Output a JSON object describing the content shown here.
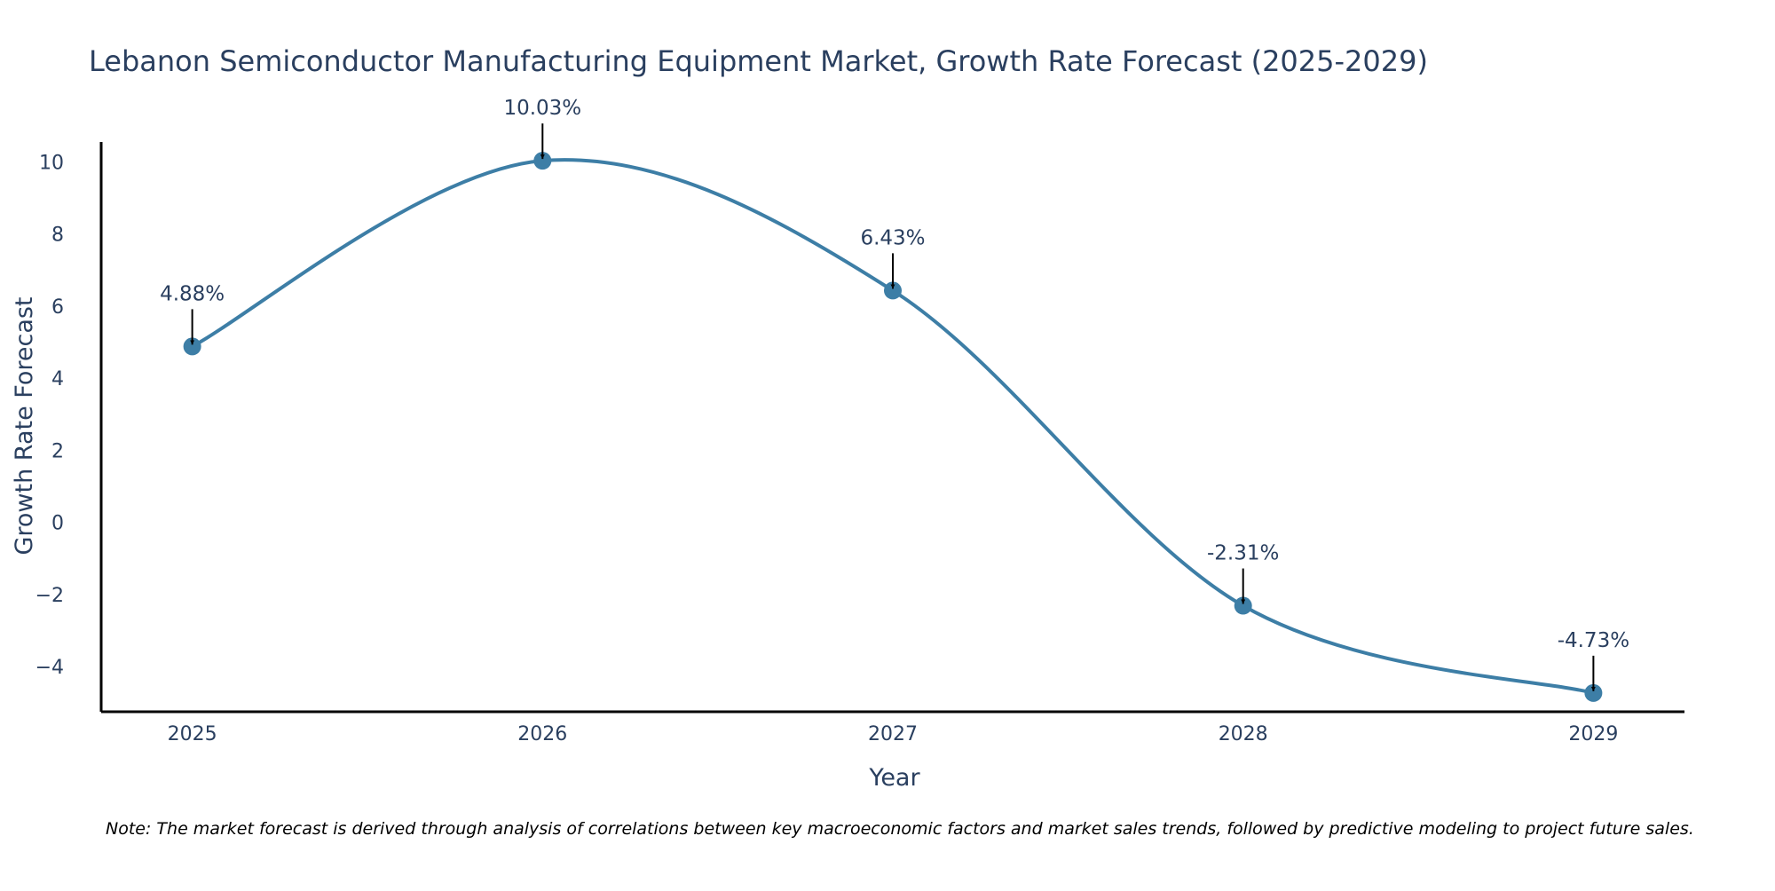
{
  "chart_data": {
    "type": "line",
    "title": "Lebanon Semiconductor Manufacturing Equipment Market, Growth Rate Forecast (2025-2029)",
    "xlabel": "Year",
    "ylabel": "Growth Rate Forecast",
    "categories": [
      "2025",
      "2026",
      "2027",
      "2028",
      "2029"
    ],
    "series": [
      {
        "name": "Growth Rate Forecast",
        "values": [
          4.88,
          10.03,
          6.43,
          -2.31,
          -4.73
        ],
        "labels": [
          "4.88%",
          "10.03%",
          "6.43%",
          "-2.31%",
          "-4.73%"
        ]
      }
    ],
    "yticks": [
      -4,
      -2,
      0,
      2,
      4,
      6,
      8,
      10
    ],
    "ytick_labels": [
      "−4",
      "−2",
      "0",
      "2",
      "4",
      "6",
      "8",
      "10"
    ],
    "ylim": [
      -5.25,
      10.55
    ],
    "xlim": [
      -0.26,
      4.26
    ],
    "grid": false,
    "line_color": "#3d7ea6",
    "marker_color": "#3d7ea6",
    "arrow_color": "#000000",
    "text_color": "#2a3f5f",
    "note": "Note: The market forecast is derived through analysis of correlations between key macroeconomic factors and market sales trends, followed by predictive modeling to project future sales."
  }
}
